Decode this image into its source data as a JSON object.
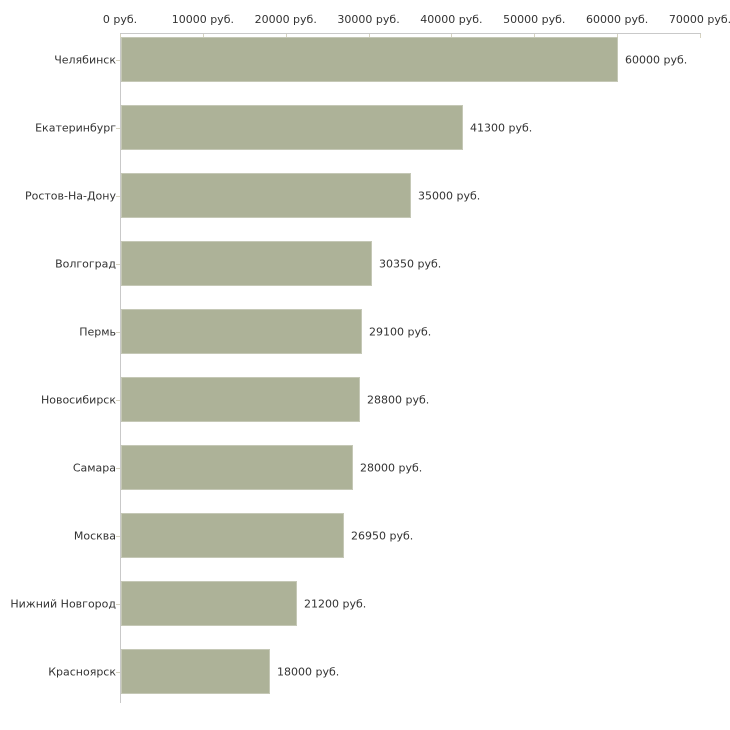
{
  "chart_data": {
    "type": "bar",
    "orientation": "horizontal",
    "title": "",
    "xlabel": "",
    "ylabel": "",
    "grid": false,
    "legend": false,
    "categories": [
      "Челябинск",
      "Екатеринбург",
      "Ростов-На-Дону",
      "Волгоград",
      "Пермь",
      "Новосибирск",
      "Самара",
      "Москва",
      "Нижний Новгород",
      "Красноярск"
    ],
    "values": [
      60000,
      41300,
      35000,
      30350,
      29100,
      28800,
      28000,
      26950,
      21200,
      18000
    ],
    "value_labels": [
      "60000 руб.",
      "41300 руб.",
      "35000 руб.",
      "30350 руб.",
      "29100 руб.",
      "28800 руб.",
      "28000 руб.",
      "26950 руб.",
      "21200 руб.",
      "18000 руб."
    ],
    "x_axis": {
      "position": "top",
      "range": [
        0,
        70000
      ],
      "ticks": [
        0,
        10000,
        20000,
        30000,
        40000,
        50000,
        60000,
        70000
      ],
      "tick_labels": [
        "0 руб.",
        "10000 руб.",
        "20000 руб.",
        "30000 руб.",
        "40000 руб.",
        "50000 руб.",
        "60000 руб.",
        "70000 руб."
      ]
    },
    "colors": {
      "bar_fill": "#adb298",
      "bar_border": "#c5c8b6",
      "axis_line": "#c9c9c9",
      "tick_mark": "#d6d3c0",
      "text": "#333333",
      "background": "#ffffff"
    }
  }
}
